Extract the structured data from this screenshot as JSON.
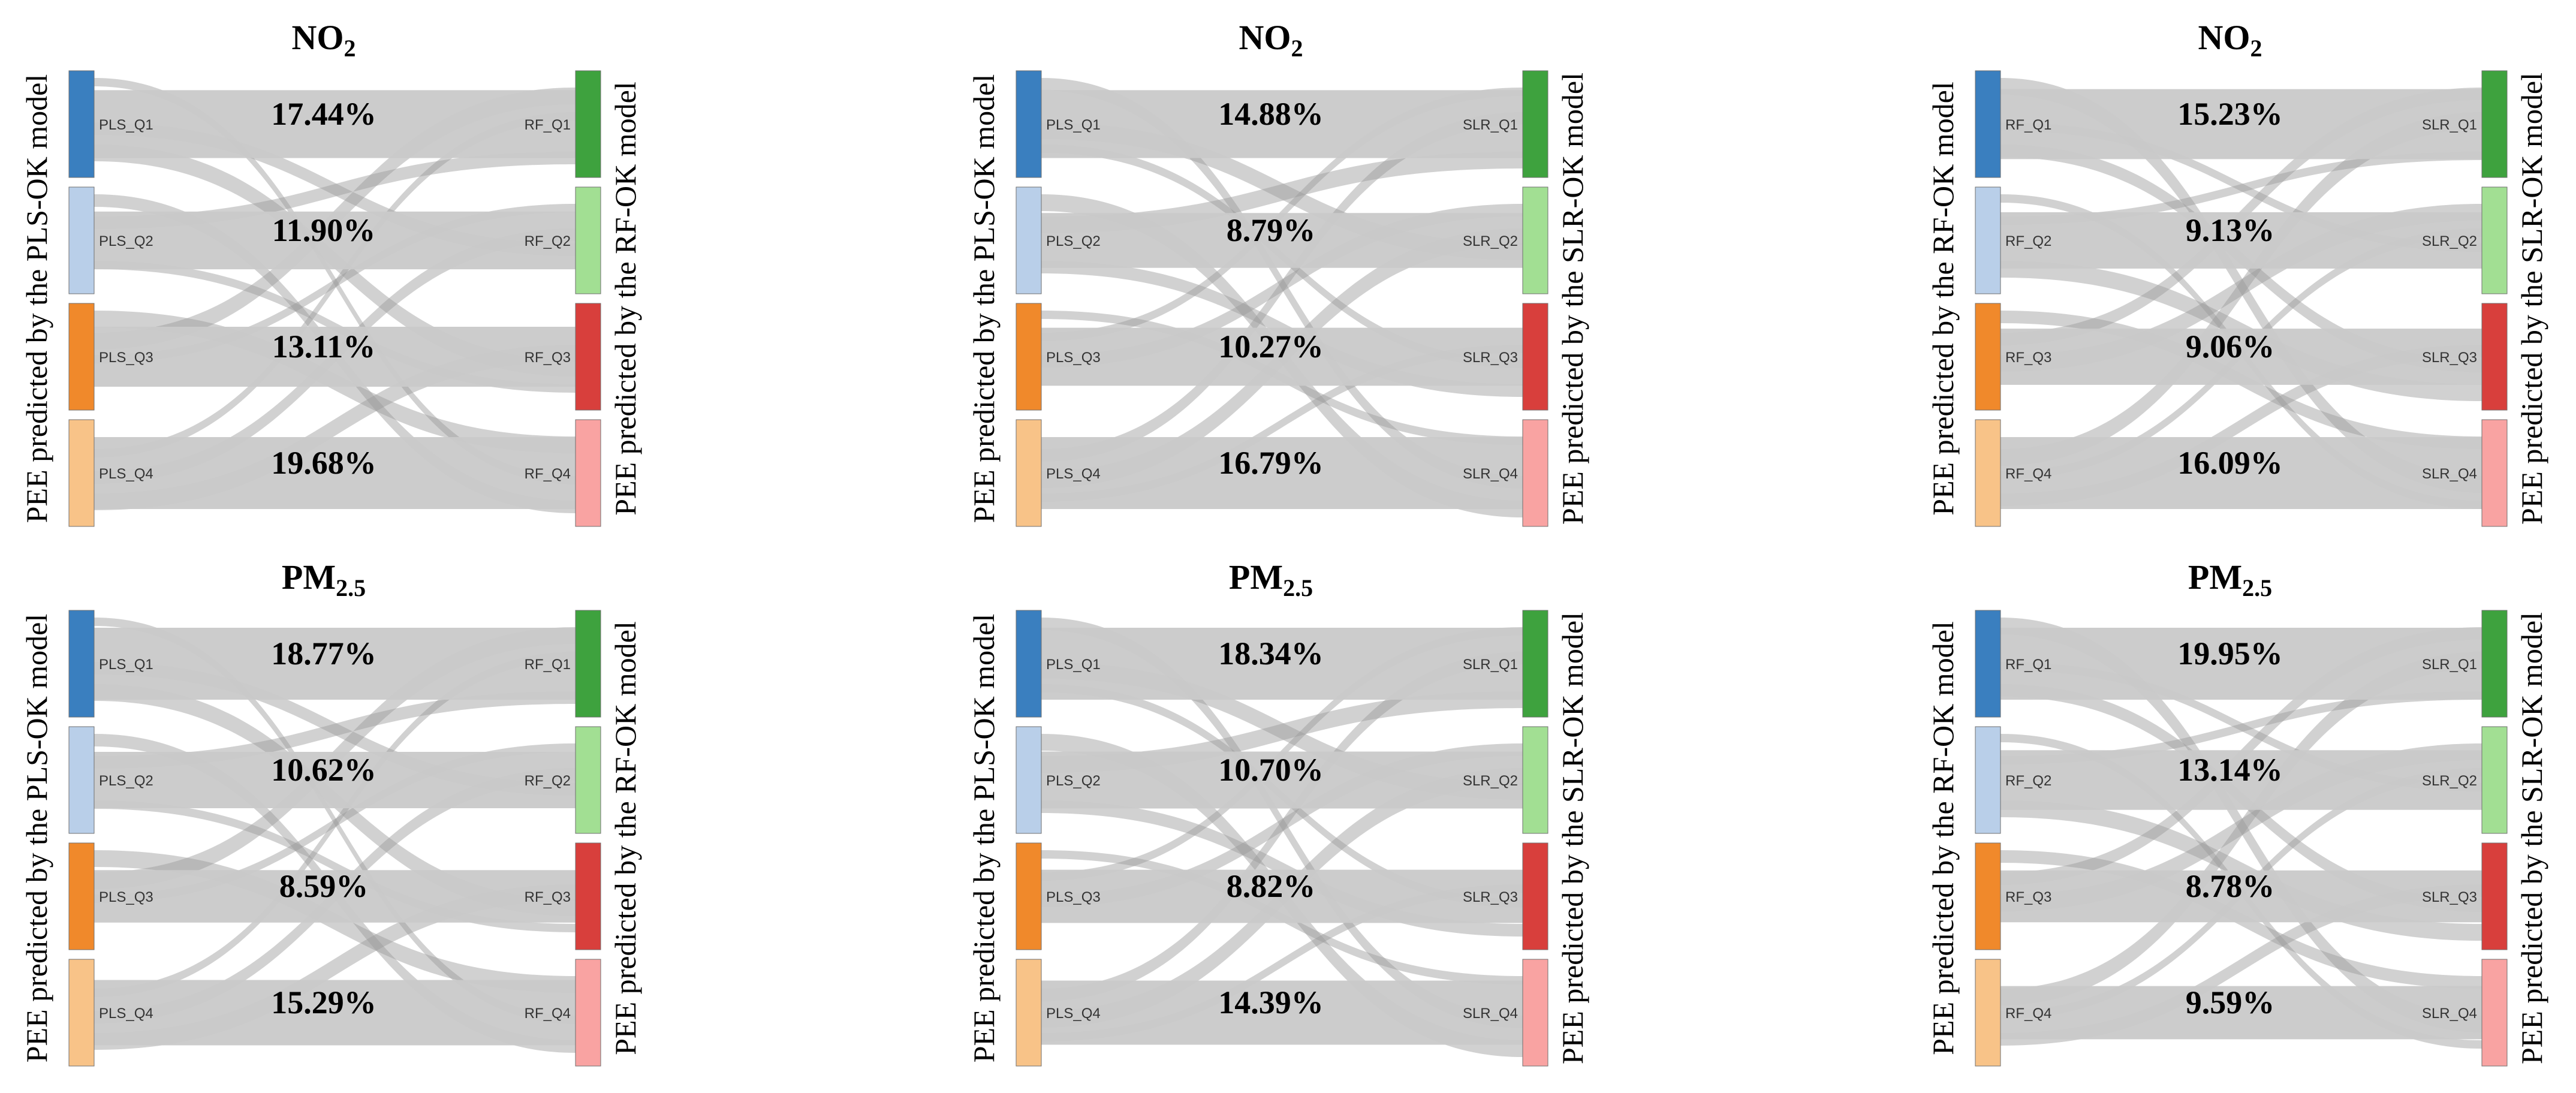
{
  "chart_data": [
    {
      "type": "sankey",
      "title_main": "NO",
      "title_sub": "2",
      "left_axis_label": "PEE predicted by the PLS-OK model",
      "right_axis_label": "PEE predicted by the RF-OK model",
      "left_nodes": [
        "PLS_Q1",
        "PLS_Q2",
        "PLS_Q3",
        "PLS_Q4"
      ],
      "right_nodes": [
        "RF_Q1",
        "RF_Q2",
        "RF_Q3",
        "RF_Q4"
      ],
      "same_quartile_percentages": [
        "17.44%",
        "11.90%",
        "13.11%",
        "19.68%"
      ]
    },
    {
      "type": "sankey",
      "title_main": "NO",
      "title_sub": "2",
      "left_axis_label": "PEE predicted by the PLS-OK model",
      "right_axis_label": "PEE predicted by the SLR-OK model",
      "left_nodes": [
        "PLS_Q1",
        "PLS_Q2",
        "PLS_Q3",
        "PLS_Q4"
      ],
      "right_nodes": [
        "SLR_Q1",
        "SLR_Q2",
        "SLR_Q3",
        "SLR_Q4"
      ],
      "same_quartile_percentages": [
        "14.88%",
        "8.79%",
        "10.27%",
        "16.79%"
      ]
    },
    {
      "type": "sankey",
      "title_main": "NO",
      "title_sub": "2",
      "left_axis_label": "PEE predicted by the RF-OK model",
      "right_axis_label": "PEE predicted by the SLR-OK model",
      "left_nodes": [
        "RF_Q1",
        "RF_Q2",
        "RF_Q3",
        "RF_Q4"
      ],
      "right_nodes": [
        "SLR_Q1",
        "SLR_Q2",
        "SLR_Q3",
        "SLR_Q4"
      ],
      "same_quartile_percentages": [
        "15.23%",
        "9.13%",
        "9.06%",
        "16.09%"
      ]
    },
    {
      "type": "sankey",
      "title_main": "PM",
      "title_sub": "2.5",
      "left_axis_label": "PEE predicted by the PLS-OK model",
      "right_axis_label": "PEE predicted by the RF-OK model",
      "left_nodes": [
        "PLS_Q1",
        "PLS_Q2",
        "PLS_Q3",
        "PLS_Q4"
      ],
      "right_nodes": [
        "RF_Q1",
        "RF_Q2",
        "RF_Q3",
        "RF_Q4"
      ],
      "same_quartile_percentages": [
        "18.77%",
        "10.62%",
        "8.59%",
        "15.29%"
      ]
    },
    {
      "type": "sankey",
      "title_main": "PM",
      "title_sub": "2.5",
      "left_axis_label": "PEE predicted by the PLS-OK model",
      "right_axis_label": "PEE predicted by the SLR-OK model",
      "left_nodes": [
        "PLS_Q1",
        "PLS_Q2",
        "PLS_Q3",
        "PLS_Q4"
      ],
      "right_nodes": [
        "SLR_Q1",
        "SLR_Q2",
        "SLR_Q3",
        "SLR_Q4"
      ],
      "same_quartile_percentages": [
        "18.34%",
        "10.70%",
        "8.82%",
        "14.39%"
      ]
    },
    {
      "type": "sankey",
      "title_main": "PM",
      "title_sub": "2.5",
      "left_axis_label": "PEE predicted by the RF-OK model",
      "right_axis_label": "PEE predicted by the SLR-OK model",
      "left_nodes": [
        "RF_Q1",
        "RF_Q2",
        "RF_Q3",
        "RF_Q4"
      ],
      "right_nodes": [
        "SLR_Q1",
        "SLR_Q2",
        "SLR_Q3",
        "SLR_Q4"
      ],
      "same_quartile_percentages": [
        "19.95%",
        "13.14%",
        "8.78%",
        "9.59%"
      ]
    }
  ],
  "colors": {
    "left_nodes": [
      "#3a7fbf",
      "#b9cfe9",
      "#f0892b",
      "#f8c388"
    ],
    "right_nodes": [
      "#3ea23e",
      "#a2df93",
      "#d83f3c",
      "#f9a3a2"
    ],
    "flow": "#c9c9c9",
    "cross_flow": "#9a9a9a"
  }
}
